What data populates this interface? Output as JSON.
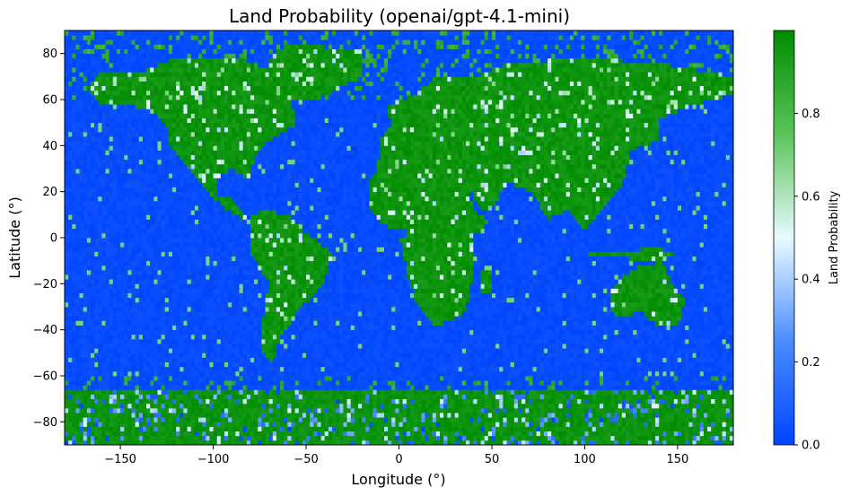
{
  "chart_data": {
    "type": "heatmap",
    "title": "Land Probability (openai/gpt-4.1-mini)",
    "xlabel": "Longitude (°)",
    "ylabel": "Latitude (°)",
    "xlim": [
      -180,
      180
    ],
    "ylim": [
      -90,
      90
    ],
    "x_ticks": [
      -150,
      -100,
      -50,
      0,
      50,
      100,
      150
    ],
    "x_tick_labels": [
      "−150",
      "−100",
      "−50",
      "0",
      "50",
      "100",
      "150"
    ],
    "y_ticks": [
      -80,
      -60,
      -40,
      -20,
      0,
      20,
      40,
      60,
      80
    ],
    "y_tick_labels": [
      "−80",
      "−60",
      "−40",
      "−20",
      "0",
      "20",
      "40",
      "60",
      "80"
    ],
    "grid": false,
    "cell_size_deg": 2,
    "colorbar": {
      "label": "Land Probability",
      "range": [
        0,
        1
      ],
      "ticks": [
        0.0,
        0.2,
        0.4,
        0.6,
        0.8
      ],
      "tick_labels": [
        "0.0",
        "0.2",
        "0.4",
        "0.6",
        "0.8"
      ],
      "colormap": [
        {
          "value": 0.0,
          "color": "#0044ff"
        },
        {
          "value": 0.25,
          "color": "#4a8cff"
        },
        {
          "value": 0.5,
          "color": "#e8fbff"
        },
        {
          "value": 0.75,
          "color": "#5ac45a"
        },
        {
          "value": 1.0,
          "color": "#008c00"
        }
      ]
    },
    "land_regions_high_probability": [
      {
        "name": "North America",
        "lon": [
          -168,
          -52
        ],
        "lat": [
          15,
          78
        ],
        "value": 1.0
      },
      {
        "name": "South America",
        "lon": [
          -82,
          -36
        ],
        "lat": [
          -56,
          12
        ],
        "value": 0.9
      },
      {
        "name": "Africa",
        "lon": [
          0,
          40
        ],
        "lat": [
          -42,
          0
        ],
        "value": 1.0
      },
      {
        "name": "Eurasia",
        "lon": [
          -10,
          180
        ],
        "lat": [
          0,
          78
        ],
        "value": 1.0
      },
      {
        "name": "Australia",
        "lon": [
          120,
          158
        ],
        "lat": [
          -42,
          -10
        ],
        "value": 1.0
      },
      {
        "name": "Antarctica",
        "lon": [
          -180,
          180
        ],
        "lat": [
          -90,
          -64
        ],
        "value": 0.95
      }
    ]
  }
}
